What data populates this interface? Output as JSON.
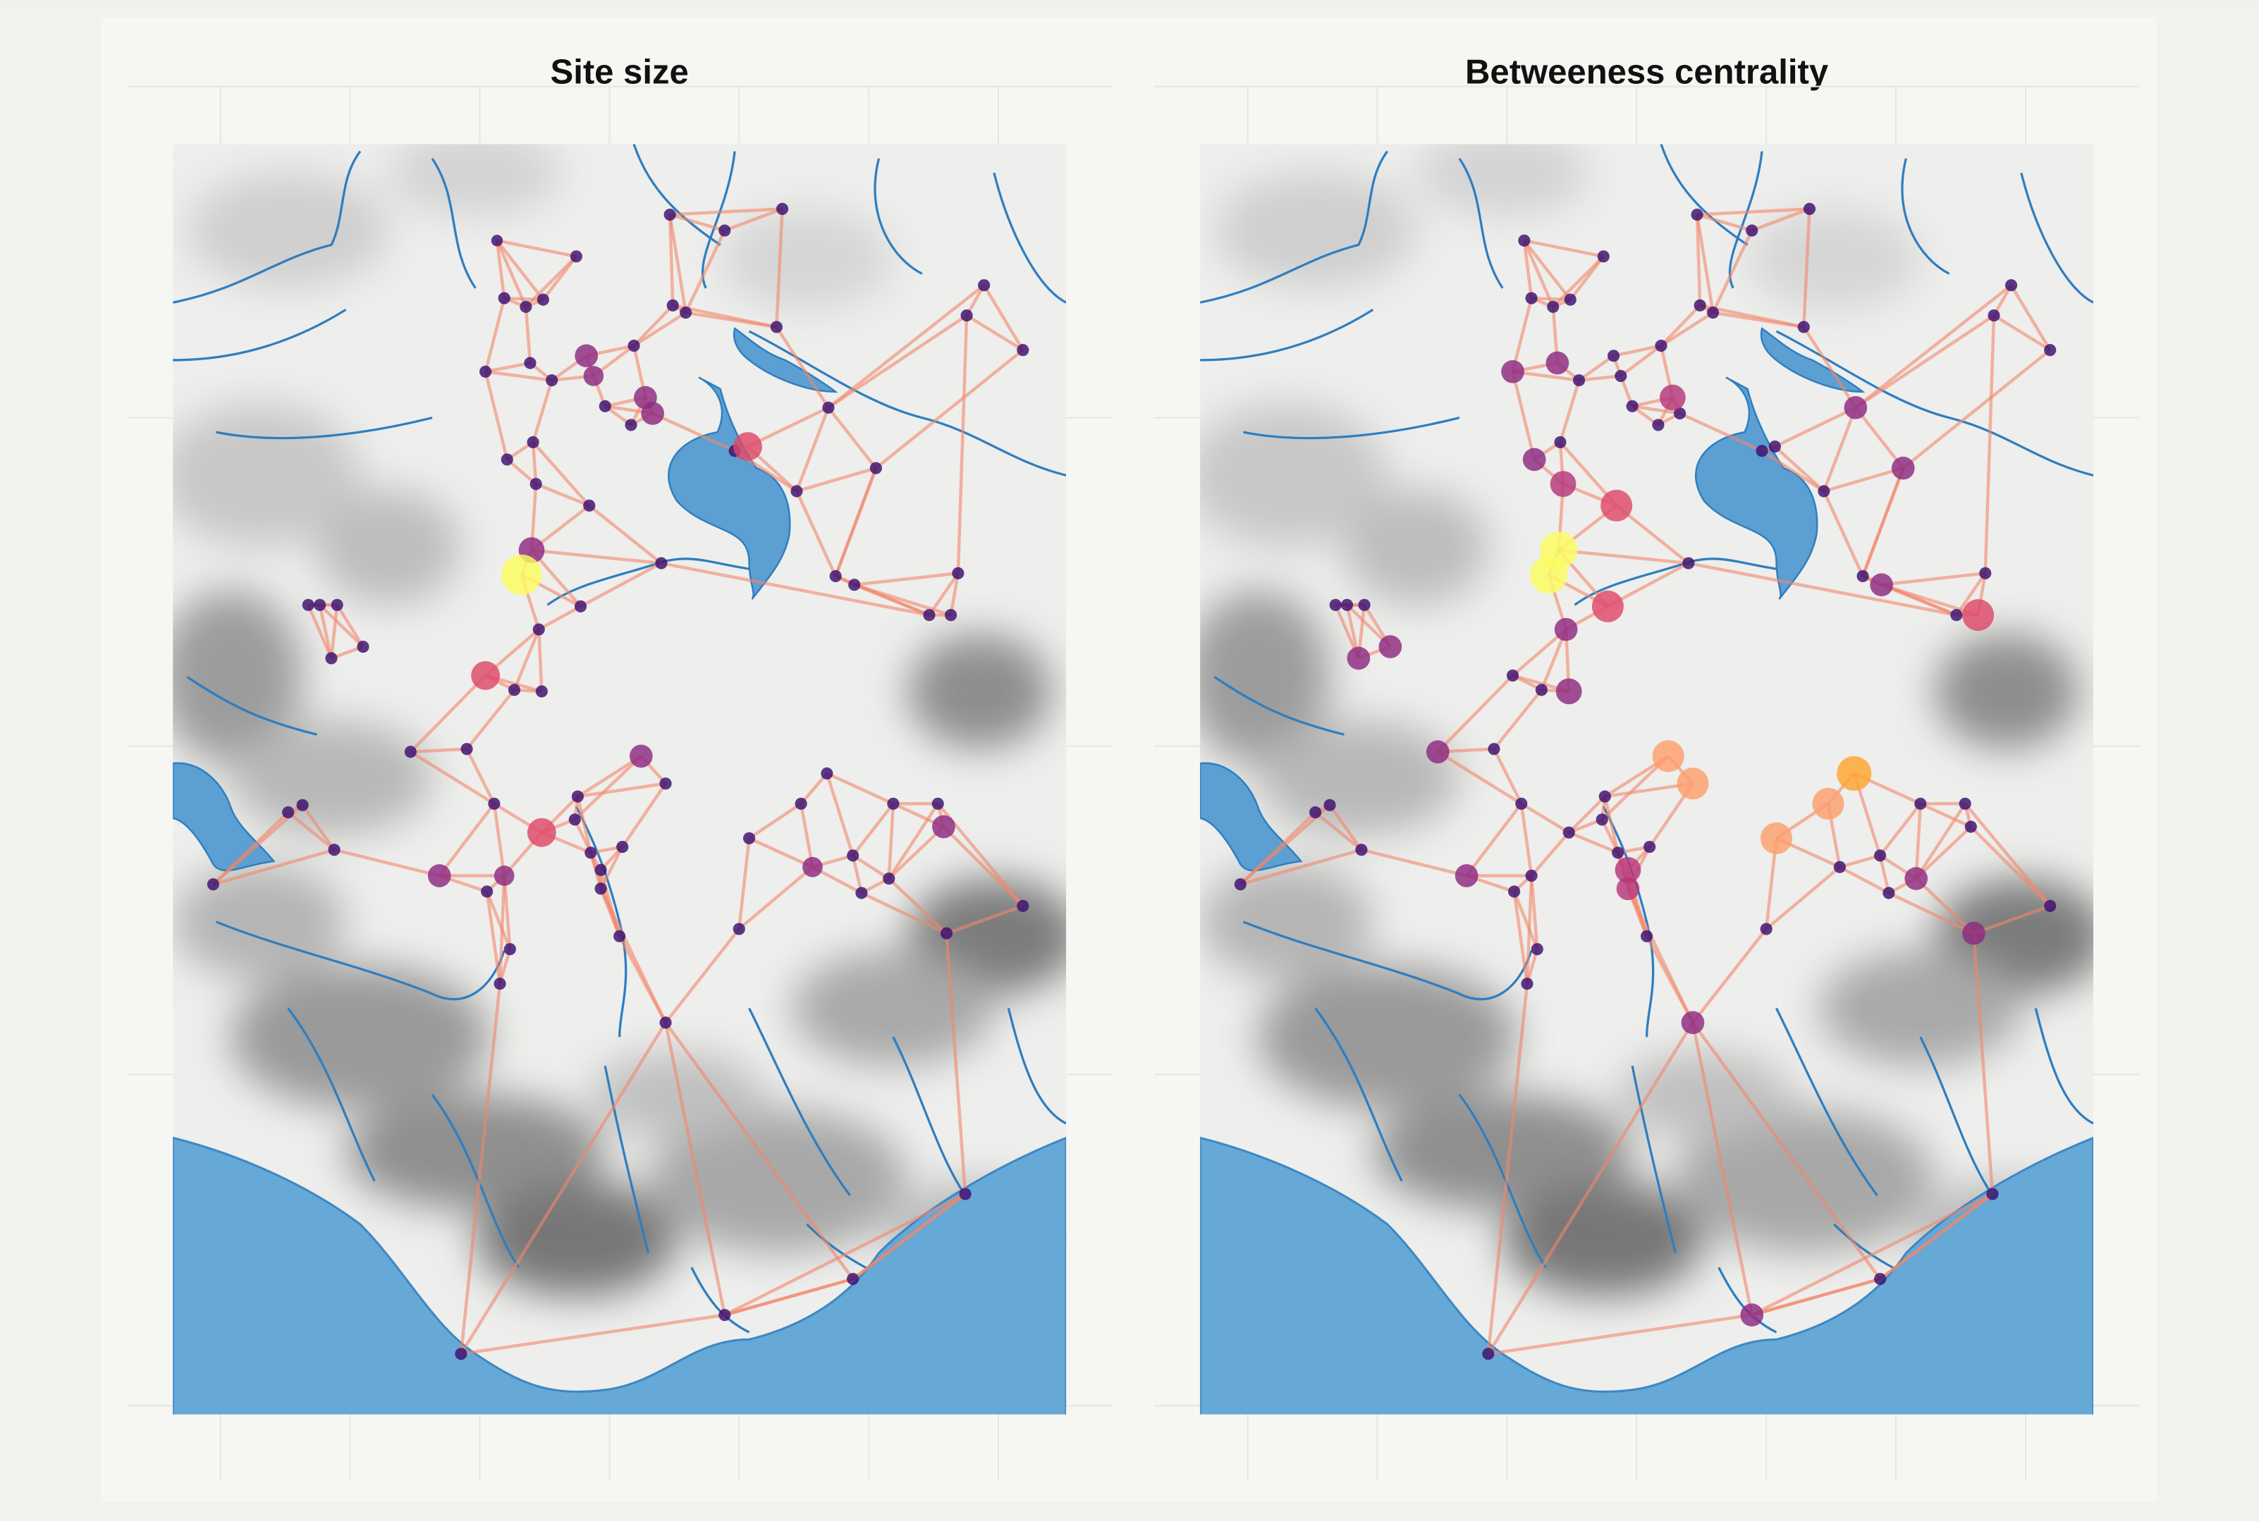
{
  "panels": [
    {
      "title": "Site size"
    },
    {
      "title": "Betweeness centrality"
    }
  ]
}
